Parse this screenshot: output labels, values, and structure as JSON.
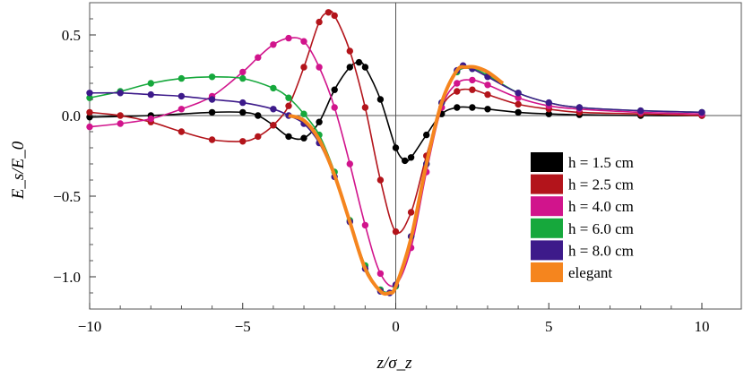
{
  "chart_data": {
    "type": "line",
    "title": "",
    "xlabel": "z/σ_z",
    "ylabel": "E_s/E_0",
    "xlim": [
      -10,
      10
    ],
    "ylim": [
      -1.2,
      0.7
    ],
    "x_ticks": [
      -10,
      -5,
      0,
      5,
      10
    ],
    "x_tick_labels": [
      "−10",
      "−5",
      "0",
      "5",
      "10"
    ],
    "y_ticks": [
      -1.0,
      -0.5,
      0.0,
      0.5
    ],
    "y_tick_labels": [
      "−1.0",
      "−0.5",
      "0.0",
      "0.5"
    ],
    "grid": false,
    "legend_position": "bottom-right",
    "series": [
      {
        "name": "h = 1.5 cm",
        "color": "#000000",
        "x": [
          -10,
          -8,
          -6,
          -5,
          -4.5,
          -4,
          -3.5,
          -3,
          -2.5,
          -2,
          -1.5,
          -1.2,
          -1,
          -0.5,
          0,
          0.3,
          0.5,
          1,
          1.5,
          2,
          2.5,
          3,
          4,
          5,
          6,
          8,
          10
        ],
        "y": [
          -0.01,
          0.0,
          0.02,
          0.02,
          0.0,
          -0.06,
          -0.13,
          -0.14,
          -0.04,
          0.16,
          0.3,
          0.33,
          0.3,
          0.1,
          -0.2,
          -0.28,
          -0.26,
          -0.12,
          0.01,
          0.05,
          0.05,
          0.04,
          0.02,
          0.01,
          0.005,
          0.0,
          0.0
        ]
      },
      {
        "name": "h = 2.5 cm",
        "color": "#b3141b",
        "x": [
          -10,
          -9,
          -8,
          -7,
          -6,
          -5,
          -4.5,
          -4,
          -3.5,
          -3,
          -2.5,
          -2.2,
          -2,
          -1.5,
          -1,
          -0.5,
          0,
          0.5,
          1,
          1.5,
          2,
          2.5,
          3,
          4,
          5,
          6,
          8,
          10
        ],
        "y": [
          0.02,
          0.0,
          -0.04,
          -0.1,
          -0.15,
          -0.16,
          -0.13,
          -0.06,
          0.06,
          0.3,
          0.58,
          0.64,
          0.62,
          0.4,
          0.05,
          -0.4,
          -0.72,
          -0.6,
          -0.25,
          0.05,
          0.15,
          0.16,
          0.13,
          0.07,
          0.04,
          0.02,
          0.01,
          0.0
        ]
      },
      {
        "name": "h = 4.0 cm",
        "color": "#d1148c",
        "x": [
          -10,
          -9,
          -8,
          -7,
          -6,
          -5,
          -4.5,
          -4,
          -3.5,
          -3,
          -2.5,
          -2,
          -1.5,
          -1,
          -0.5,
          0,
          0.5,
          1,
          1.5,
          2,
          2.5,
          3,
          4,
          5,
          6,
          8,
          10
        ],
        "y": [
          -0.07,
          -0.05,
          -0.02,
          0.04,
          0.12,
          0.27,
          0.36,
          0.44,
          0.48,
          0.46,
          0.3,
          0.05,
          -0.3,
          -0.68,
          -0.98,
          -1.05,
          -0.82,
          -0.35,
          0.05,
          0.2,
          0.22,
          0.19,
          0.11,
          0.06,
          0.04,
          0.02,
          0.01
        ]
      },
      {
        "name": "h = 6.0 cm",
        "color": "#16a83c",
        "x": [
          -10,
          -9,
          -8,
          -7,
          -6,
          -5,
          -4,
          -3.5,
          -3,
          -2.5,
          -2,
          -1.5,
          -1,
          -0.5,
          0,
          0.5,
          1,
          1.5,
          2,
          2.5,
          3,
          4,
          5,
          6,
          8,
          10
        ],
        "y": [
          0.11,
          0.15,
          0.2,
          0.23,
          0.24,
          0.23,
          0.17,
          0.11,
          0.01,
          -0.12,
          -0.35,
          -0.65,
          -0.93,
          -1.08,
          -1.06,
          -0.75,
          -0.3,
          0.08,
          0.27,
          0.29,
          0.25,
          0.14,
          0.08,
          0.05,
          0.03,
          0.02
        ]
      },
      {
        "name": "h = 8.0 cm",
        "color": "#3d1a8a",
        "x": [
          -10,
          -9,
          -8,
          -7,
          -6,
          -5,
          -4,
          -3.5,
          -3,
          -2.5,
          -2,
          -1.5,
          -1,
          -0.5,
          -0.2,
          0,
          0.5,
          1,
          1.5,
          2,
          2.2,
          2.5,
          3,
          4,
          5,
          6,
          8,
          10
        ],
        "y": [
          0.14,
          0.14,
          0.13,
          0.12,
          0.1,
          0.08,
          0.04,
          0.0,
          -0.05,
          -0.17,
          -0.38,
          -0.66,
          -0.95,
          -1.09,
          -1.1,
          -1.05,
          -0.75,
          -0.3,
          0.08,
          0.28,
          0.31,
          0.29,
          0.24,
          0.14,
          0.08,
          0.05,
          0.03,
          0.02
        ]
      },
      {
        "name": "elegant",
        "color": "#f5851e",
        "x": [
          -3.5,
          -3,
          -2.5,
          -2,
          -1.5,
          -1,
          -0.5,
          -0.2,
          0,
          0.5,
          1,
          1.5,
          2,
          2.3,
          2.6,
          3,
          3.5
        ],
        "y": [
          0.0,
          -0.03,
          -0.15,
          -0.37,
          -0.66,
          -0.95,
          -1.09,
          -1.1,
          -1.06,
          -0.76,
          -0.3,
          0.08,
          0.28,
          0.3,
          0.3,
          0.27,
          0.2
        ]
      }
    ]
  }
}
